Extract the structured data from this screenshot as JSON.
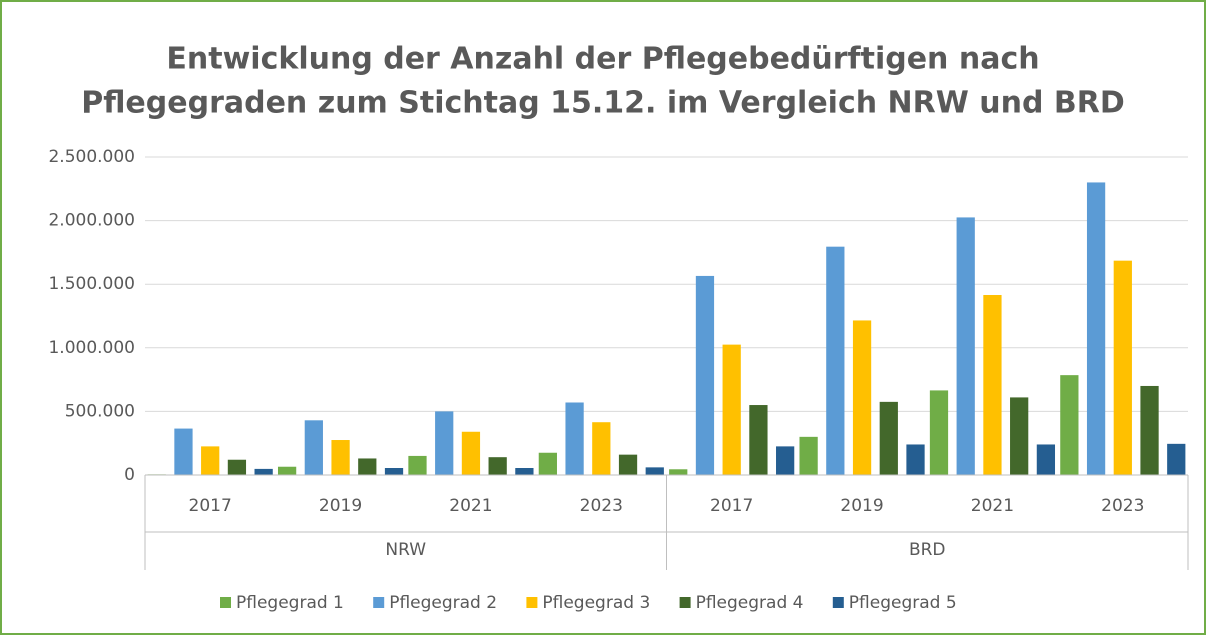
{
  "chart_data": {
    "type": "bar",
    "title": [
      "Entwicklung der Anzahl der Pflegebedürftigen nach",
      "Pflegegraden zum Stichtag 15.12. im Vergleich NRW und BRD"
    ],
    "categories": [
      "2017",
      "2019",
      "2021",
      "2023",
      "2017",
      "2019",
      "2021",
      "2023"
    ],
    "category_groups": [
      "NRW",
      "NRW",
      "NRW",
      "NRW",
      "BRD",
      "BRD",
      "BRD",
      "BRD"
    ],
    "series": [
      {
        "name": "Pflegegrad 1",
        "color": "#70ad47",
        "values": [
          5000,
          65000,
          150000,
          175000,
          45000,
          300000,
          665000,
          785000
        ]
      },
      {
        "name": "Pflegegrad 2",
        "color": "#5b9bd5",
        "values": [
          365000,
          430000,
          500000,
          570000,
          1565000,
          1795000,
          2025000,
          2300000
        ]
      },
      {
        "name": "Pflegegrad 3",
        "color": "#ffc000",
        "values": [
          225000,
          275000,
          340000,
          415000,
          1025000,
          1215000,
          1415000,
          1685000
        ]
      },
      {
        "name": "Pflegegrad 4",
        "color": "#43682b",
        "values": [
          120000,
          130000,
          140000,
          160000,
          550000,
          575000,
          610000,
          700000
        ]
      },
      {
        "name": "Pflegegrad 5",
        "color": "#255e91",
        "values": [
          48000,
          55000,
          55000,
          60000,
          225000,
          240000,
          240000,
          245000
        ]
      }
    ],
    "ylim": [
      0,
      2500000
    ],
    "yticks": [
      0,
      {
        "value": 500000,
        "label": "500.000"
      },
      {
        "value": 1000000,
        "label": "1.000.000"
      },
      {
        "value": 1500000,
        "label": "1.500.000"
      },
      {
        "value": 2000000,
        "label": "2.000.000"
      },
      {
        "value": 2500000,
        "label": "2.500.000"
      }
    ],
    "grid": true,
    "legend": "bottom"
  }
}
